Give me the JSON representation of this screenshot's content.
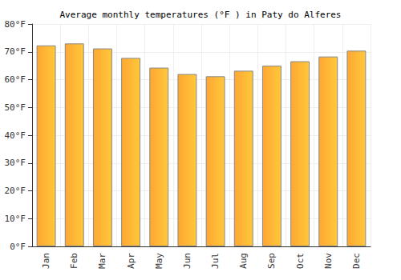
{
  "chart_data": {
    "type": "bar",
    "title": "Average monthly temperatures (°F ) in Paty do Alferes",
    "categories": [
      "Jan",
      "Feb",
      "Mar",
      "Apr",
      "May",
      "Jun",
      "Jul",
      "Aug",
      "Sep",
      "Oct",
      "Nov",
      "Dec"
    ],
    "values": [
      72.3,
      73,
      71.2,
      67.8,
      64.3,
      62,
      61.2,
      63.2,
      65,
      66.6,
      68.3,
      70.4
    ],
    "color": "#ffa733",
    "ylim": [
      0,
      80
    ],
    "yticks": [
      {
        "value": 0,
        "label": "0°F"
      },
      {
        "value": 10,
        "label": "10°F"
      },
      {
        "value": 20,
        "label": "20°F"
      },
      {
        "value": 30,
        "label": "30°F"
      },
      {
        "value": 40,
        "label": "40°F"
      },
      {
        "value": 50,
        "label": "50°F"
      },
      {
        "value": 60,
        "label": "60°F"
      },
      {
        "value": 70,
        "label": "70°F"
      },
      {
        "value": 80,
        "label": "80°F"
      }
    ],
    "grid": true
  }
}
